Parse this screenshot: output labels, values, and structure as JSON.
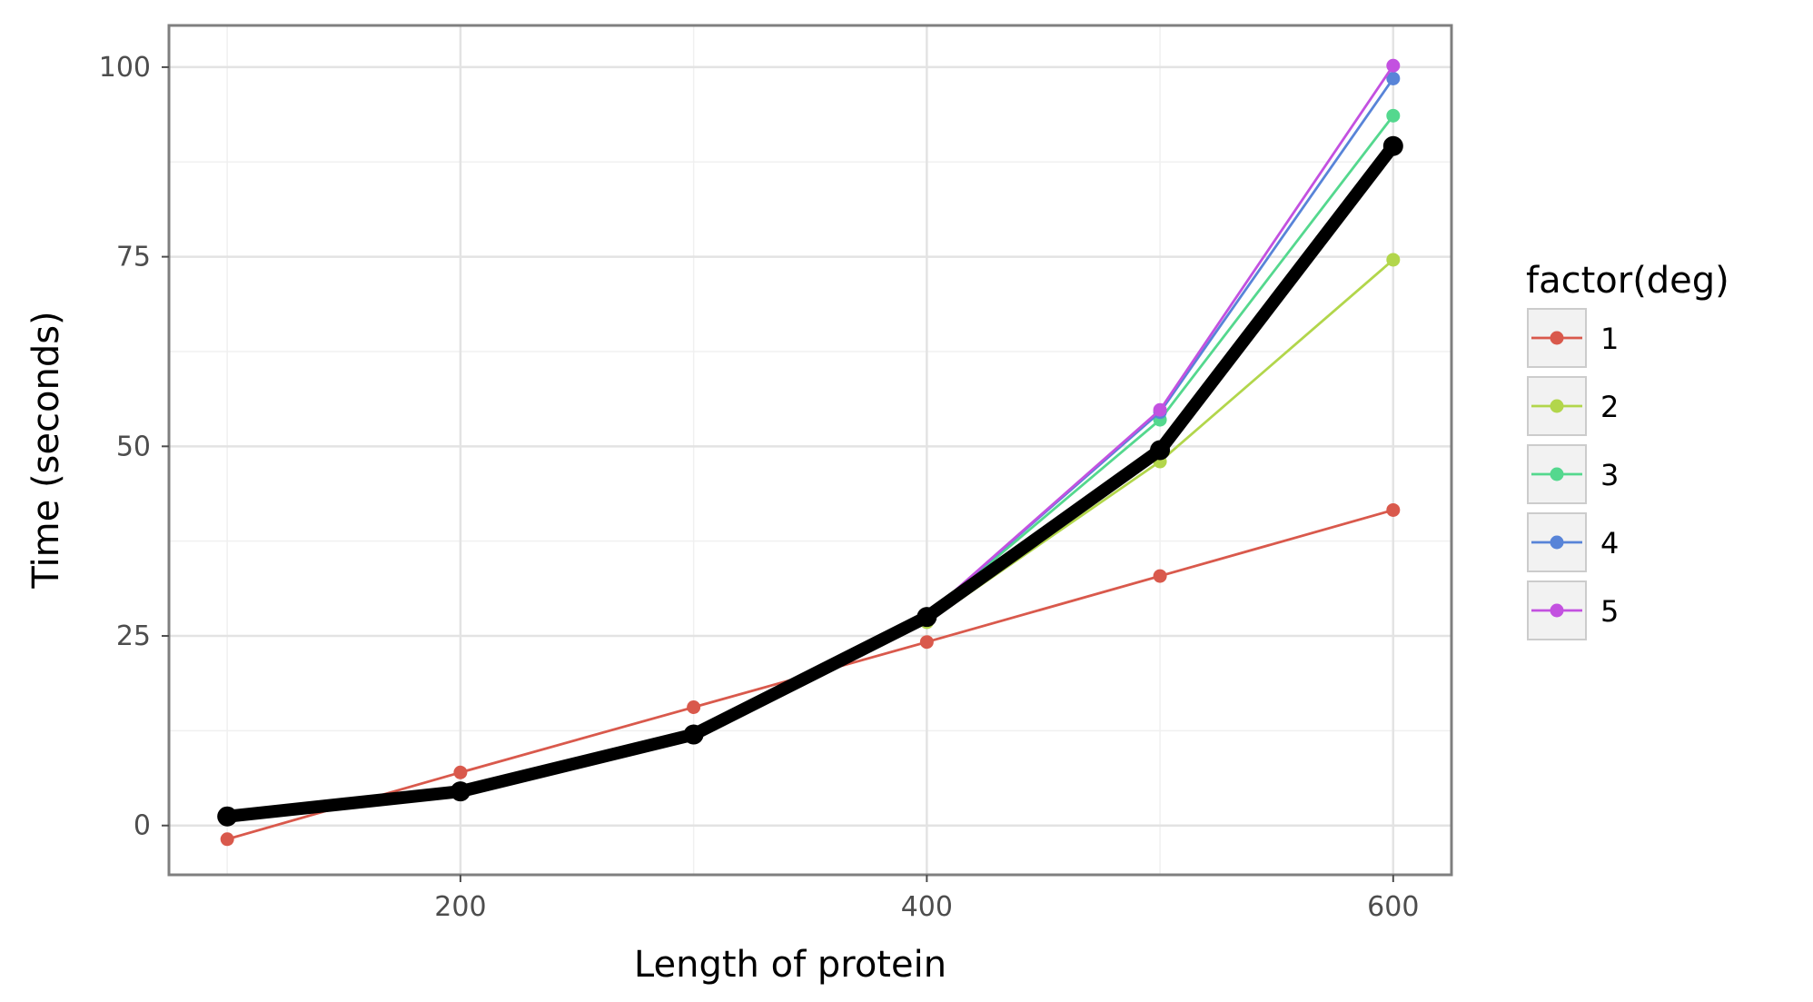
{
  "chart_data": {
    "type": "line",
    "x": [
      100,
      200,
      300,
      400,
      500,
      600
    ],
    "xlabel": "Length of protein",
    "ylabel": "Time (seconds)",
    "xlim": [
      75,
      625
    ],
    "ylim": [
      -6.5,
      105.5
    ],
    "xticks": [
      200,
      400,
      600
    ],
    "xtick_labels": [
      "200",
      "400",
      "600"
    ],
    "yticks": [
      0,
      25,
      50,
      75,
      100
    ],
    "ytick_labels": [
      "0",
      "25",
      "50",
      "75",
      "100"
    ],
    "grid": true,
    "legend": {
      "title": "factor(deg)",
      "position": "right"
    },
    "series": [
      {
        "name": "1",
        "color": "#d9594c",
        "values": [
          -1.8,
          7.0,
          15.6,
          24.2,
          32.9,
          41.6
        ]
      },
      {
        "name": "2",
        "color": "#b2d64b",
        "values": [
          1.3,
          4.2,
          12.0,
          26.8,
          48.0,
          74.6
        ]
      },
      {
        "name": "3",
        "color": "#54d88e",
        "values": [
          1.3,
          4.3,
          12.1,
          27.6,
          53.5,
          93.6
        ]
      },
      {
        "name": "4",
        "color": "#5884d8",
        "values": [
          1.3,
          4.3,
          12.1,
          27.7,
          54.5,
          98.5
        ]
      },
      {
        "name": "5",
        "color": "#c351e0",
        "values": [
          1.3,
          4.3,
          12.1,
          27.7,
          54.8,
          100.2
        ]
      }
    ],
    "overlay": {
      "color": "#000000",
      "values": [
        1.2,
        4.5,
        12.0,
        27.5,
        49.5,
        89.6
      ]
    }
  }
}
